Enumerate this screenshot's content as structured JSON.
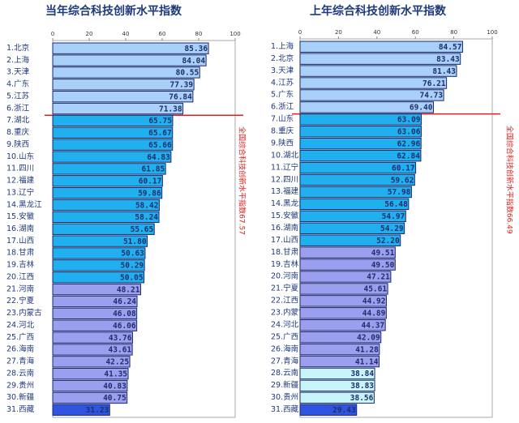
{
  "chart_data": [
    {
      "type": "bar",
      "orientation": "horizontal",
      "title": "当年综合科技创新水平指数",
      "annotation": "全国综合科技创新水平指数67.57",
      "categories": [
        "1.北京",
        "2.上海",
        "3.天津",
        "4.广东",
        "5.江苏",
        "6.浙江",
        "7.湖北",
        "8.重庆",
        "9.陕西",
        "10.山东",
        "11.四川",
        "12.福建",
        "13.辽宁",
        "14.黑龙江",
        "15.安徽",
        "16.湖南",
        "17.山西",
        "18.甘肃",
        "19.吉林",
        "20.江西",
        "21.河南",
        "22.宁夏",
        "23.内蒙古",
        "24.河北",
        "25.广西",
        "26.海南",
        "27.青海",
        "28.云南",
        "29.贵州",
        "30.新疆",
        "31.西藏"
      ],
      "values": [
        85.36,
        84.04,
        80.55,
        77.39,
        76.84,
        71.38,
        65.75,
        65.67,
        65.66,
        64.83,
        61.85,
        60.17,
        59.86,
        58.42,
        58.24,
        55.65,
        51.8,
        50.63,
        50.29,
        50.05,
        48.21,
        46.24,
        46.08,
        46.06,
        43.76,
        43.61,
        42.25,
        41.35,
        40.83,
        40.75,
        31.23
      ],
      "value_labels": [
        "85.36",
        "84.04",
        "80.55",
        "77.39",
        "76.84",
        "71.38",
        "65.75",
        "65.67",
        "65.66",
        "64.83",
        "61.85",
        "60.17",
        "59.86",
        "58.42",
        "58.24",
        "55.65",
        "51.80",
        "50.63",
        "50.29",
        "50.05",
        "48.21",
        "46.24",
        "46.08",
        "46.06",
        "43.76",
        "43.61",
        "42.25",
        "41.35",
        "40.83",
        "40.75",
        "31.23"
      ],
      "colors": [
        "#a8d0f8",
        "#a8d0f8",
        "#a8d0f8",
        "#a8d0f8",
        "#a8d0f8",
        "#a8d0f8",
        "#20b0f0",
        "#20b0f0",
        "#20b0f0",
        "#20b0f0",
        "#20b0f0",
        "#20b0f0",
        "#20b0f0",
        "#20b0f0",
        "#20b0f0",
        "#20b0f0",
        "#20b0f0",
        "#20b0f0",
        "#20b0f0",
        "#20b0f0",
        "#9c9ef0",
        "#9c9ef0",
        "#9c9ef0",
        "#9c9ef0",
        "#9c9ef0",
        "#9c9ef0",
        "#9c9ef0",
        "#9c9ef0",
        "#9c9ef0",
        "#9c9ef0",
        "#2f55e0"
      ],
      "xlim": [
        0,
        100
      ],
      "xticks": [
        0,
        20,
        40,
        60,
        80,
        100
      ]
    },
    {
      "type": "bar",
      "orientation": "horizontal",
      "title": "上年综合科技创新水平指数",
      "annotation": "全国综合科技创新水平指数66.49",
      "categories": [
        "1.上海",
        "2.北京",
        "3.天津",
        "4.江苏",
        "5.广东",
        "6.浙江",
        "7.山东",
        "8.重庆",
        "9.陕西",
        "10.湖北",
        "11.辽宁",
        "12.四川",
        "13.福建",
        "14.黑龙江",
        "15.安徽",
        "16.湖南",
        "17.山西",
        "18.甘肃",
        "19.吉林",
        "20.河南",
        "21.宁夏",
        "22.江西",
        "23.内蒙古",
        "24.河北",
        "25.广西",
        "26.海南",
        "27.青海",
        "28.云南",
        "29.新疆",
        "30.贵州",
        "31.西藏"
      ],
      "values": [
        84.57,
        83.43,
        81.43,
        76.21,
        74.73,
        69.4,
        63.09,
        63.06,
        62.96,
        62.84,
        60.17,
        59.62,
        57.98,
        56.48,
        54.97,
        54.29,
        52.2,
        49.51,
        49.5,
        47.21,
        45.61,
        44.92,
        44.89,
        44.37,
        42.09,
        41.28,
        41.14,
        38.84,
        38.83,
        38.56,
        29.43
      ],
      "value_labels": [
        "84.57",
        "83.43",
        "81.43",
        "76.21",
        "74.73",
        "69.40",
        "63.09",
        "63.06",
        "62.96",
        "62.84",
        "60.17",
        "59.62",
        "57.98",
        "56.48",
        "54.97",
        "54.29",
        "52.20",
        "49.51",
        "49.50",
        "47.21",
        "45.61",
        "44.92",
        "44.89",
        "44.37",
        "42.09",
        "41.28",
        "41.14",
        "38.84",
        "38.83",
        "38.56",
        "29.43"
      ],
      "colors": [
        "#a8d0f8",
        "#a8d0f8",
        "#a8d0f8",
        "#a8d0f8",
        "#a8d0f8",
        "#a8d0f8",
        "#20b0f0",
        "#20b0f0",
        "#20b0f0",
        "#20b0f0",
        "#20b0f0",
        "#20b0f0",
        "#20b0f0",
        "#20b0f0",
        "#20b0f0",
        "#20b0f0",
        "#20b0f0",
        "#9c9ef0",
        "#9c9ef0",
        "#9c9ef0",
        "#9c9ef0",
        "#9c9ef0",
        "#9c9ef0",
        "#9c9ef0",
        "#9c9ef0",
        "#9c9ef0",
        "#9c9ef0",
        "#c8f4fc",
        "#c8f4fc",
        "#c8f4fc",
        "#2f55e0"
      ],
      "xlim": [
        0,
        100
      ],
      "xticks": [
        0,
        20,
        40,
        60,
        80,
        100
      ]
    }
  ]
}
